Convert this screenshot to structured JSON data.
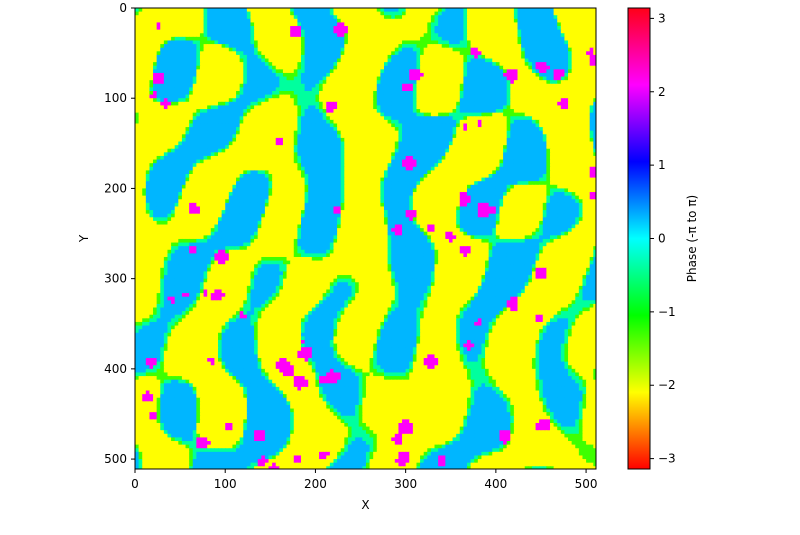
{
  "chart_data": {
    "type": "heatmap",
    "title": "",
    "xlabel": "X",
    "ylabel": "Y",
    "colorbar_label": "Phase (-π to π)",
    "colormap": "hsv",
    "xlim": [
      0,
      511
    ],
    "ylim": [
      511,
      0
    ],
    "x_ticks": [
      0,
      100,
      200,
      300,
      400,
      500
    ],
    "y_ticks": [
      0,
      100,
      200,
      300,
      400,
      500
    ],
    "colorbar_range": [
      -3.14159,
      3.14159
    ],
    "colorbar_ticks": [
      3,
      2,
      1,
      0,
      -1,
      -2,
      -3
    ],
    "colorbar_tick_labels": [
      "3",
      "2",
      "1",
      "0",
      "−1",
      "−2",
      "−3"
    ],
    "dominant_phase_values": [
      -2.1,
      -1.3,
      -0.4,
      0.3,
      2.3
    ],
    "grid": false,
    "legend": "colorbar-right"
  }
}
